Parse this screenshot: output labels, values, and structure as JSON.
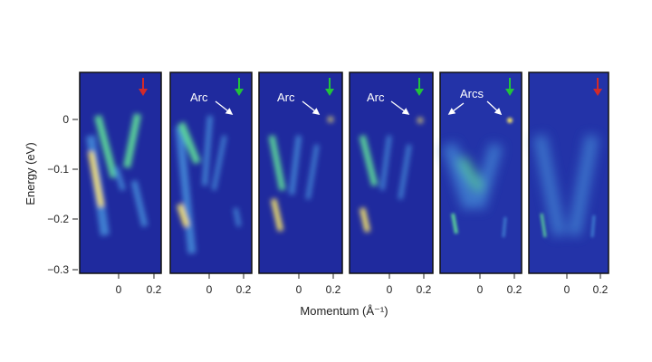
{
  "figure": {
    "ylabel": "Energy (eV)",
    "xlabel": "Momentum (Å⁻¹)",
    "y_ticks": [
      "0",
      "−0.1",
      "−0.2",
      "−0.3"
    ],
    "x_ticks": [
      "0",
      "0.2"
    ],
    "panels": [
      {
        "id": "panel-1",
        "arrow_color": "#d12a2a",
        "labels": []
      },
      {
        "id": "panel-2",
        "arrow_color": "#22c33a",
        "labels": [
          "Arc"
        ]
      },
      {
        "id": "panel-3",
        "arrow_color": "#22c33a",
        "labels": [
          "Arc"
        ]
      },
      {
        "id": "panel-4",
        "arrow_color": "#22c33a",
        "labels": [
          "Arc"
        ]
      },
      {
        "id": "panel-5",
        "arrow_color": "#22c33a",
        "labels": [
          "Arcs"
        ]
      },
      {
        "id": "panel-6",
        "arrow_color": "#d12a2a",
        "labels": []
      }
    ],
    "colors": {
      "background": "#1f2a9e",
      "intensity_low": "#3f7fd1",
      "intensity_mid": "#5ad19a",
      "intensity_high": "#f4e36a",
      "frame": "#111111"
    }
  }
}
